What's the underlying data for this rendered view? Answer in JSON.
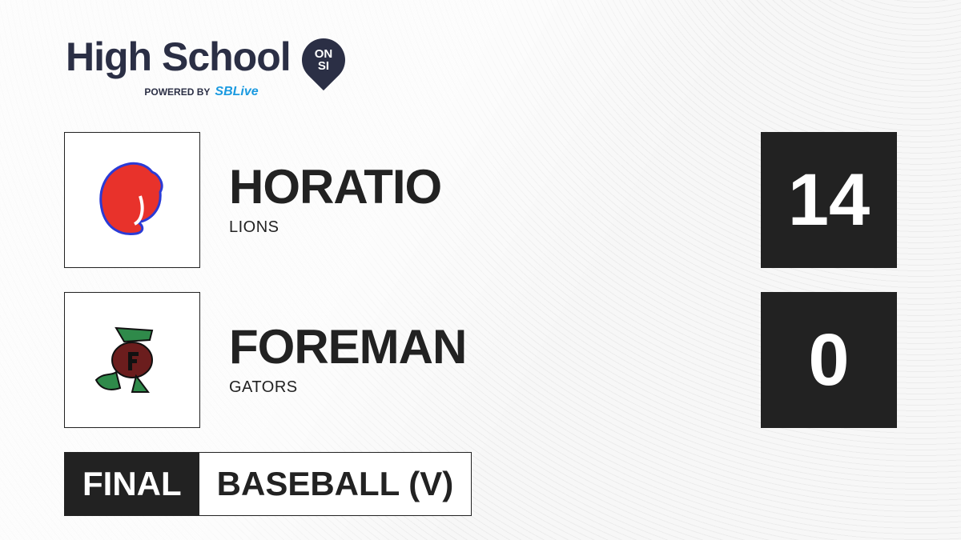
{
  "brand": {
    "title": "High School",
    "badge_top": "ON",
    "badge_bottom": "SI",
    "powered_by": "POWERED BY",
    "partner": "SBLive"
  },
  "teams": [
    {
      "name": "HORATIO",
      "mascot": "LIONS",
      "score": "14",
      "logo_icon": "lion-head-icon",
      "color": "#e8322b"
    },
    {
      "name": "FOREMAN",
      "mascot": "GATORS",
      "score": "0",
      "logo_icon": "gator-mascot-icon",
      "color": "#2f8a4a"
    }
  ],
  "status": {
    "label": "FINAL",
    "sport": "BASEBALL (V)"
  }
}
